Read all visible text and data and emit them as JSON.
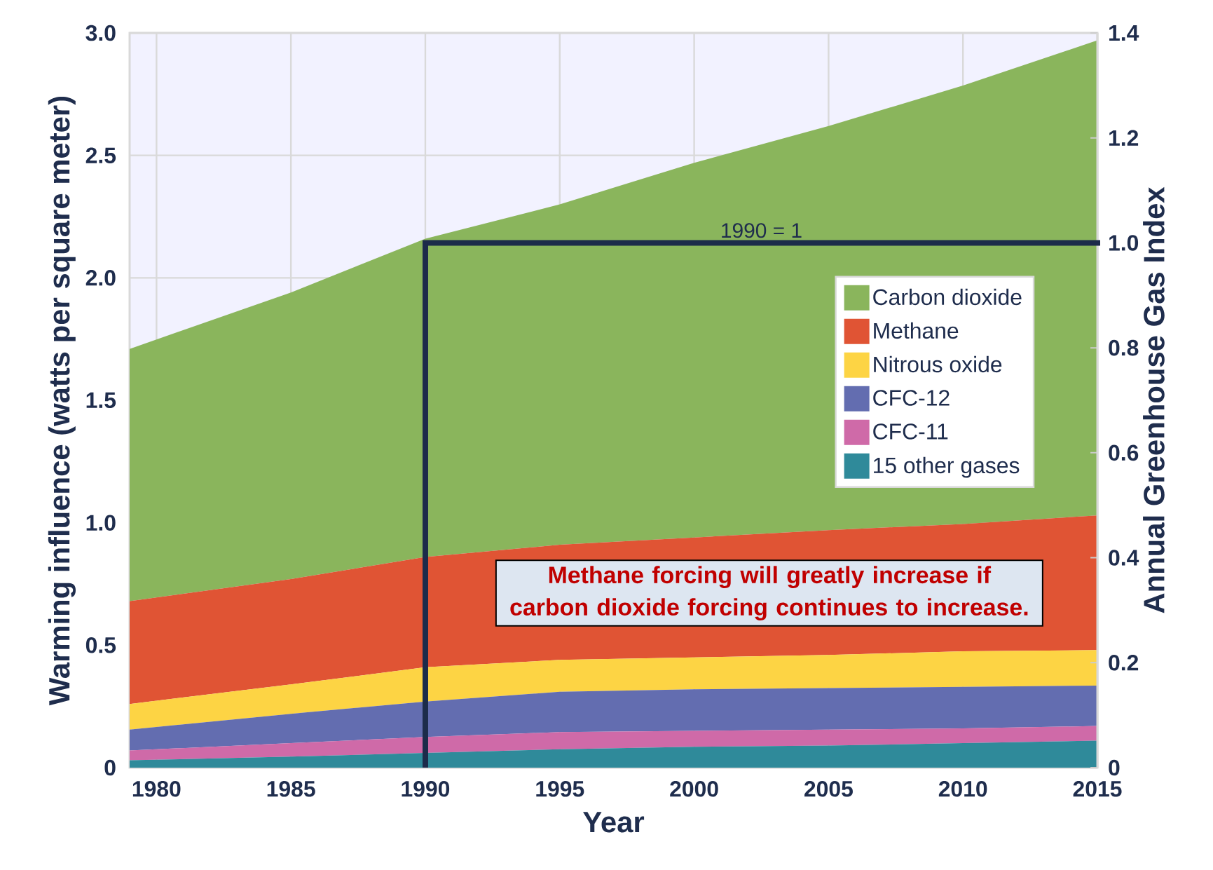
{
  "chart_data": {
    "type": "area",
    "stacked": true,
    "xlabel": "Year",
    "ylabel": "Warming influence (watts per square meter)",
    "y2label": "Annual Greenhouse Gas Index",
    "x": [
      1979,
      1985,
      1990,
      1995,
      2000,
      2005,
      2010,
      2015
    ],
    "series": [
      {
        "name": "15 other gases",
        "color": "#2f8a9a",
        "values": [
          0.03,
          0.045,
          0.06,
          0.075,
          0.085,
          0.09,
          0.1,
          0.11
        ]
      },
      {
        "name": "CFC-11",
        "color": "#cf6aa8",
        "values": [
          0.04,
          0.055,
          0.065,
          0.07,
          0.065,
          0.065,
          0.06,
          0.06
        ]
      },
      {
        "name": "CFC-12",
        "color": "#636db0",
        "values": [
          0.085,
          0.12,
          0.145,
          0.165,
          0.17,
          0.17,
          0.17,
          0.165
        ]
      },
      {
        "name": "Nitrous oxide",
        "color": "#fdd444",
        "values": [
          0.105,
          0.12,
          0.14,
          0.13,
          0.13,
          0.135,
          0.145,
          0.145
        ]
      },
      {
        "name": "Methane",
        "color": "#e05434",
        "values": [
          0.42,
          0.43,
          0.45,
          0.47,
          0.49,
          0.51,
          0.52,
          0.55
        ]
      },
      {
        "name": "Carbon dioxide",
        "color": "#8ab55c",
        "values": [
          1.03,
          1.17,
          1.3,
          1.39,
          1.53,
          1.65,
          1.79,
          1.94
        ]
      }
    ],
    "xlim": [
      1979,
      2015
    ],
    "xticks": [
      1980,
      1985,
      1990,
      1995,
      2000,
      2005,
      2010,
      2015
    ],
    "ylim": [
      0,
      3.0
    ],
    "yticks": [
      {
        "value": 0,
        "label": "0"
      },
      0.5,
      {
        "value": 1,
        "label": "1.0"
      },
      1.5,
      {
        "value": 2,
        "label": "2.0"
      },
      2.5,
      {
        "value": 3,
        "label": "3.0"
      }
    ],
    "y2lim": [
      0,
      1.4
    ],
    "y2ticks": [
      {
        "value": 0,
        "label": "0"
      },
      0.2,
      0.4,
      0.6,
      0.8,
      {
        "value": 1,
        "label": "1.0"
      },
      1.2,
      1.4
    ],
    "ref_lines": [
      {
        "axis": "y2",
        "value": 1,
        "label": "1990 = 1",
        "color": "#1c2b4a"
      },
      {
        "axis": "x",
        "value": 1990,
        "color": "#1c2b4a"
      }
    ],
    "grid": true,
    "legend": "right",
    "annotations": [
      "Methane forcing will greatly increase if carbon dioxide forcing continues to increase."
    ]
  }
}
